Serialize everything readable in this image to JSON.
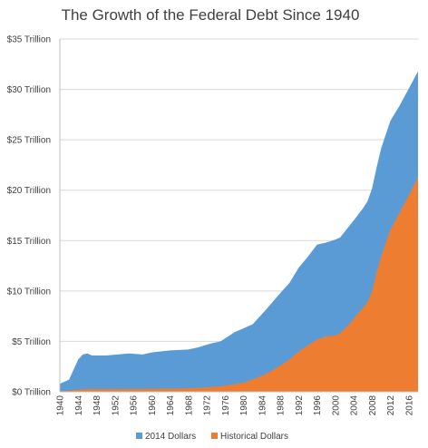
{
  "chart_data": {
    "type": "area",
    "title": "The Growth of the Federal Debt Since 1940",
    "xlabel": "",
    "ylabel": "",
    "ylim": [
      0,
      35
    ],
    "xlim": [
      1940,
      2018
    ],
    "yticks": [
      0,
      5,
      10,
      15,
      20,
      25,
      30,
      35
    ],
    "ytick_labels": [
      "$0 Trillion",
      "$5 Trillion",
      "$10 Trillion",
      "$15 Trillion",
      "$20 Trillion",
      "$25 Trillion",
      "$30 Trillion",
      "$35 Trillion"
    ],
    "xticks": [
      1940,
      1944,
      1948,
      1952,
      1956,
      1960,
      1964,
      1968,
      1972,
      1976,
      1980,
      1984,
      1988,
      1992,
      1996,
      2000,
      2004,
      2008,
      2012,
      2016
    ],
    "grid": true,
    "legend_position": "bottom",
    "series": [
      {
        "name": "2014 Dollars",
        "color": "#5b9bd5",
        "x": [
          1940,
          1942,
          1943,
          1944,
          1945,
          1946,
          1947,
          1950,
          1955,
          1958,
          1960,
          1964,
          1968,
          1970,
          1973,
          1975,
          1978,
          1980,
          1982,
          1985,
          1988,
          1990,
          1992,
          1994,
          1996,
          1998,
          2000,
          2001,
          2004,
          2006,
          2007,
          2008,
          2009,
          2010,
          2012,
          2014,
          2016,
          2018
        ],
        "values": [
          0.8,
          1.2,
          2.2,
          3.2,
          3.7,
          3.8,
          3.6,
          3.6,
          3.8,
          3.7,
          3.9,
          4.1,
          4.2,
          4.4,
          4.8,
          5.0,
          5.9,
          6.3,
          6.7,
          8.2,
          9.8,
          10.8,
          12.3,
          13.4,
          14.6,
          14.8,
          15.1,
          15.3,
          17.0,
          18.2,
          18.9,
          20.2,
          22.3,
          24.2,
          26.9,
          28.4,
          30.1,
          31.8
        ]
      },
      {
        "name": "Historical Dollars",
        "color": "#ed7d31",
        "x": [
          1940,
          1944,
          1946,
          1950,
          1955,
          1960,
          1965,
          1970,
          1975,
          1980,
          1983,
          1985,
          1988,
          1990,
          1992,
          1994,
          1996,
          1998,
          2000,
          2001,
          2003,
          2005,
          2007,
          2008,
          2009,
          2010,
          2012,
          2014,
          2016,
          2018
        ],
        "values": [
          0.05,
          0.2,
          0.27,
          0.26,
          0.27,
          0.29,
          0.32,
          0.38,
          0.54,
          0.9,
          1.4,
          1.8,
          2.6,
          3.2,
          4.0,
          4.6,
          5.2,
          5.5,
          5.6,
          5.8,
          6.7,
          7.8,
          8.9,
          10.0,
          11.9,
          13.5,
          16.1,
          17.8,
          19.5,
          21.3
        ]
      }
    ]
  }
}
